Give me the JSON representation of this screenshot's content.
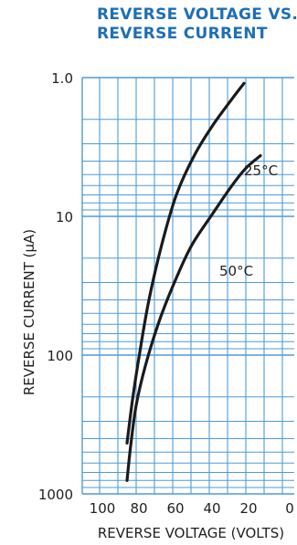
{
  "chart_data": {
    "type": "line",
    "title_lines": [
      "REVERSE VOLTAGE VS.",
      "REVERSE CURRENT"
    ],
    "xlabel": "REVERSE VOLTAGE (VOLTS)",
    "ylabel": "REVERSE CURRENT (μA)",
    "x_ticks": [
      "100",
      "80",
      "60",
      "40",
      "20",
      "0"
    ],
    "x_tick_values": [
      100,
      80,
      60,
      40,
      20,
      0
    ],
    "y_ticks": [
      "1.0",
      "10",
      "100",
      "1000"
    ],
    "y_tick_values": [
      1,
      10,
      100,
      1000
    ],
    "xlim": [
      0,
      100
    ],
    "x_reversed": true,
    "ylim": [
      1,
      1000
    ],
    "y_scale": "log",
    "y_inverted": true,
    "grid": true,
    "colors": {
      "title": "#1e6fb4",
      "grid": "#4f9ad8",
      "curve": "#1a1a1a",
      "text": "#1f1f1f"
    },
    "series": [
      {
        "name": "25°C",
        "x": [
          85,
          82,
          78,
          73,
          66,
          58,
          48,
          38,
          28,
          21
        ],
        "y": [
          430,
          210,
          95,
          40,
          16,
          7,
          3.6,
          2.2,
          1.45,
          1.1
        ]
      },
      {
        "name": "50°C",
        "x": [
          85,
          83,
          80,
          75,
          68,
          60,
          50,
          38,
          28,
          20,
          12
        ],
        "y": [
          800,
          450,
          230,
          120,
          60,
          32,
          16.5,
          9.5,
          6.1,
          4.5,
          3.65
        ]
      }
    ]
  }
}
